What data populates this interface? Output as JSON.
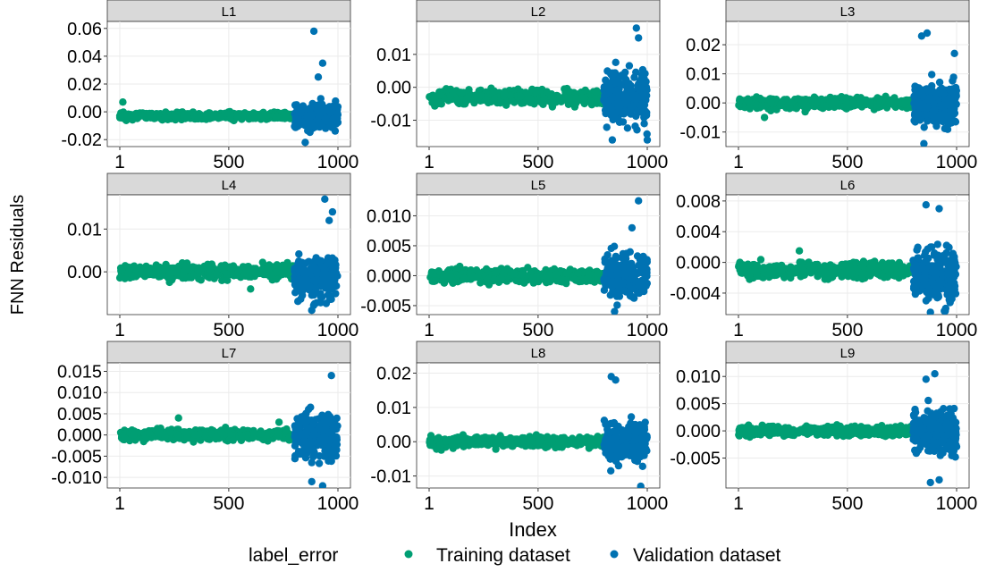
{
  "figure": {
    "ylabel": "FNN Residuals",
    "xlabel": "Index",
    "legend_title": "label_error",
    "legend_items": [
      {
        "label": "Training dataset",
        "color": "#009E73"
      },
      {
        "label": "Validation dataset",
        "color": "#0072B2"
      }
    ]
  },
  "colors": {
    "training": "#009E73",
    "validation": "#0072B2",
    "strip_bg": "#D9D9D9",
    "grid": "#EBEBEB"
  },
  "chart_data": [
    {
      "type": "scatter",
      "title": "L1",
      "xlim": [
        1,
        1000
      ],
      "xticks": [
        1,
        500,
        1000
      ],
      "xtick_labels": [
        "1",
        "500",
        "1000"
      ],
      "ylim": [
        -0.025,
        0.065
      ],
      "yticks": [
        -0.02,
        0.0,
        0.02,
        0.04,
        0.06
      ],
      "ytick_labels": [
        "-0.02",
        "0.00",
        "0.02",
        "0.04",
        "0.06"
      ],
      "grid": true,
      "legend": "bottom",
      "series": [
        {
          "name": "Training dataset",
          "x_range": [
            1,
            800
          ],
          "center": -0.003,
          "spread": 0.0018,
          "outliers": [
            [
              15,
              0.007
            ]
          ]
        },
        {
          "name": "Validation dataset",
          "x_range": [
            801,
            1000
          ],
          "center": -0.003,
          "spread": 0.007,
          "outliers": [
            [
              890,
              0.058
            ],
            [
              930,
              0.035
            ],
            [
              910,
              0.025
            ],
            [
              850,
              -0.022
            ]
          ]
        }
      ]
    },
    {
      "type": "scatter",
      "title": "L2",
      "xlim": [
        1,
        1000
      ],
      "xticks": [
        1,
        500,
        1000
      ],
      "xtick_labels": [
        "1",
        "500",
        "1000"
      ],
      "ylim": [
        -0.018,
        0.02
      ],
      "yticks": [
        -0.01,
        0.0,
        0.01
      ],
      "ytick_labels": [
        "-0.01",
        "0.00",
        "0.01"
      ],
      "grid": true,
      "legend": "bottom",
      "series": [
        {
          "name": "Training dataset",
          "x_range": [
            1,
            800
          ],
          "center": -0.003,
          "spread": 0.0018,
          "outliers": []
        },
        {
          "name": "Validation dataset",
          "x_range": [
            801,
            1000
          ],
          "center": -0.003,
          "spread": 0.0065,
          "outliers": [
            [
              950,
              0.018
            ],
            [
              960,
              0.015
            ],
            [
              840,
              -0.016
            ],
            [
              1000,
              -0.016
            ]
          ]
        }
      ]
    },
    {
      "type": "scatter",
      "title": "L3",
      "xlim": [
        1,
        1000
      ],
      "xticks": [
        1,
        500,
        1000
      ],
      "xtick_labels": [
        "1",
        "500",
        "1000"
      ],
      "ylim": [
        -0.015,
        0.028
      ],
      "yticks": [
        -0.01,
        0.0,
        0.01,
        0.02
      ],
      "ytick_labels": [
        "-0.01",
        "0.00",
        "0.01",
        "0.02"
      ],
      "grid": true,
      "legend": "bottom",
      "series": [
        {
          "name": "Training dataset",
          "x_range": [
            1,
            800
          ],
          "center": 0.0,
          "spread": 0.0015,
          "outliers": [
            [
              120,
              -0.005
            ]
          ]
        },
        {
          "name": "Validation dataset",
          "x_range": [
            801,
            1000
          ],
          "center": 0.0,
          "spread": 0.006,
          "outliers": [
            [
              840,
              0.023
            ],
            [
              865,
              0.024
            ],
            [
              990,
              0.017
            ],
            [
              850,
              -0.014
            ]
          ]
        }
      ]
    },
    {
      "type": "scatter",
      "title": "L4",
      "xlim": [
        1,
        1000
      ],
      "xticks": [
        1,
        500,
        1000
      ],
      "xtick_labels": [
        "1",
        "500",
        "1000"
      ],
      "ylim": [
        -0.01,
        0.018
      ],
      "yticks": [
        0.0,
        0.01
      ],
      "ytick_labels": [
        "0.00",
        "0.01"
      ],
      "grid": true,
      "legend": "bottom",
      "series": [
        {
          "name": "Training dataset",
          "x_range": [
            1,
            800
          ],
          "center": 0.0,
          "spread": 0.0012,
          "outliers": [
            [
              600,
              -0.004
            ]
          ]
        },
        {
          "name": "Validation dataset",
          "x_range": [
            801,
            1000
          ],
          "center": -0.001,
          "spread": 0.004,
          "outliers": [
            [
              940,
              0.017
            ],
            [
              975,
              0.014
            ],
            [
              960,
              0.012
            ],
            [
              880,
              -0.009
            ]
          ]
        }
      ]
    },
    {
      "type": "scatter",
      "title": "L5",
      "xlim": [
        1,
        1000
      ],
      "xticks": [
        1,
        500,
        1000
      ],
      "xtick_labels": [
        "1",
        "500",
        "1000"
      ],
      "ylim": [
        -0.0065,
        0.0135
      ],
      "yticks": [
        -0.005,
        0.0,
        0.005,
        0.01
      ],
      "ytick_labels": [
        "-0.005",
        "0.000",
        "0.005",
        "0.010"
      ],
      "grid": true,
      "legend": "bottom",
      "series": [
        {
          "name": "Training dataset",
          "x_range": [
            1,
            800
          ],
          "center": 0.0,
          "spread": 0.0009,
          "outliers": []
        },
        {
          "name": "Validation dataset",
          "x_range": [
            801,
            1000
          ],
          "center": 0.0,
          "spread": 0.0028,
          "outliers": [
            [
              960,
              0.0125
            ],
            [
              930,
              0.008
            ],
            [
              850,
              -0.006
            ]
          ]
        }
      ]
    },
    {
      "type": "scatter",
      "title": "L6",
      "xlim": [
        1,
        1000
      ],
      "xticks": [
        1,
        500,
        1000
      ],
      "xtick_labels": [
        "1",
        "500",
        "1000"
      ],
      "ylim": [
        -0.0068,
        0.0088
      ],
      "yticks": [
        -0.004,
        0.0,
        0.004,
        0.008
      ],
      "ytick_labels": [
        "-0.004",
        "0.000",
        "0.004",
        "0.008"
      ],
      "grid": true,
      "legend": "bottom",
      "series": [
        {
          "name": "Training dataset",
          "x_range": [
            1,
            800
          ],
          "center": -0.001,
          "spread": 0.0008,
          "outliers": [
            [
              280,
              0.0015
            ]
          ]
        },
        {
          "name": "Validation dataset",
          "x_range": [
            801,
            1000
          ],
          "center": -0.0015,
          "spread": 0.0028,
          "outliers": [
            [
              860,
              0.0075
            ],
            [
              920,
              0.007
            ],
            [
              880,
              -0.0065
            ],
            [
              950,
              -0.006
            ]
          ]
        }
      ]
    },
    {
      "type": "scatter",
      "title": "L7",
      "xlim": [
        1,
        1000
      ],
      "xticks": [
        1,
        500,
        1000
      ],
      "xtick_labels": [
        "1",
        "500",
        "1000"
      ],
      "ylim": [
        -0.0125,
        0.017
      ],
      "yticks": [
        -0.01,
        -0.005,
        0.0,
        0.005,
        0.01,
        0.015
      ],
      "ytick_labels": [
        "-0.010",
        "-0.005",
        "0.000",
        "0.005",
        "0.010",
        "0.015"
      ],
      "grid": true,
      "legend": "bottom",
      "series": [
        {
          "name": "Training dataset",
          "x_range": [
            1,
            800
          ],
          "center": 0.0,
          "spread": 0.001,
          "outliers": [
            [
              270,
              0.004
            ],
            [
              730,
              0.003
            ]
          ]
        },
        {
          "name": "Validation dataset",
          "x_range": [
            801,
            1000
          ],
          "center": 0.0,
          "spread": 0.004,
          "outliers": [
            [
              970,
              0.014
            ],
            [
              930,
              -0.012
            ],
            [
              880,
              -0.011
            ]
          ]
        }
      ]
    },
    {
      "type": "scatter",
      "title": "L8",
      "xlim": [
        1,
        1000
      ],
      "xticks": [
        1,
        500,
        1000
      ],
      "xtick_labels": [
        "1",
        "500",
        "1000"
      ],
      "ylim": [
        -0.0135,
        0.023
      ],
      "yticks": [
        -0.01,
        0.0,
        0.01,
        0.02
      ],
      "ytick_labels": [
        "-0.01",
        "0.00",
        "0.01",
        "0.02"
      ],
      "grid": true,
      "legend": "bottom",
      "series": [
        {
          "name": "Training dataset",
          "x_range": [
            1,
            800
          ],
          "center": 0.0,
          "spread": 0.0011,
          "outliers": []
        },
        {
          "name": "Validation dataset",
          "x_range": [
            801,
            1000
          ],
          "center": 0.0,
          "spread": 0.0045,
          "outliers": [
            [
              835,
              0.019
            ],
            [
              855,
              0.018
            ],
            [
              970,
              -0.013
            ]
          ]
        }
      ]
    },
    {
      "type": "scatter",
      "title": "L9",
      "xlim": [
        1,
        1000
      ],
      "xticks": [
        1,
        500,
        1000
      ],
      "xtick_labels": [
        "1",
        "500",
        "1000"
      ],
      "ylim": [
        -0.0105,
        0.0125
      ],
      "yticks": [
        -0.005,
        0.0,
        0.005,
        0.01
      ],
      "ytick_labels": [
        "-0.005",
        "0.000",
        "0.005",
        "0.010"
      ],
      "grid": true,
      "legend": "bottom",
      "series": [
        {
          "name": "Training dataset",
          "x_range": [
            1,
            800
          ],
          "center": 0.0,
          "spread": 0.0007,
          "outliers": []
        },
        {
          "name": "Validation dataset",
          "x_range": [
            801,
            1000
          ],
          "center": 0.0,
          "spread": 0.003,
          "outliers": [
            [
              900,
              0.0105
            ],
            [
              860,
              0.0095
            ],
            [
              880,
              -0.0095
            ],
            [
              920,
              -0.009
            ]
          ]
        }
      ]
    }
  ]
}
